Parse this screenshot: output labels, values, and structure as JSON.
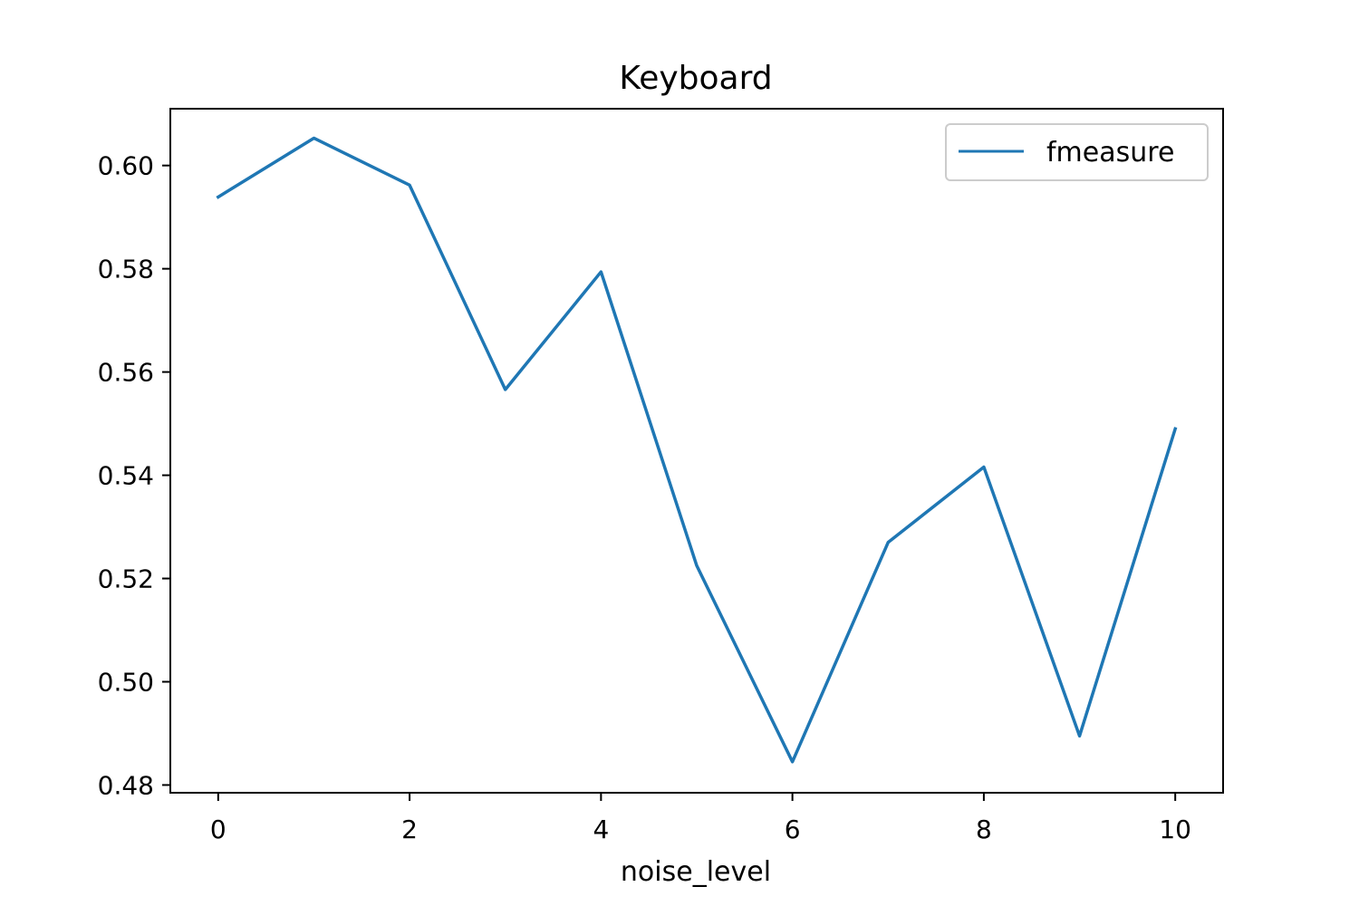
{
  "chart_data": {
    "type": "line",
    "title": "Keyboard",
    "xlabel": "noise_level",
    "ylabel": "",
    "x": [
      0,
      1,
      2,
      3,
      4,
      5,
      6,
      7,
      8,
      9,
      10
    ],
    "series": [
      {
        "name": "fmeasure",
        "color": "#1f77b4",
        "values": [
          0.5939,
          0.6053,
          0.5962,
          0.5566,
          0.5794,
          0.5225,
          0.4845,
          0.527,
          0.5416,
          0.4895,
          0.549
        ]
      }
    ],
    "xlim": [
      -0.5,
      10.5
    ],
    "ylim": [
      0.4785,
      0.611
    ],
    "xticks": [
      0,
      2,
      4,
      6,
      8,
      10
    ],
    "xtick_labels": [
      "0",
      "2",
      "4",
      "6",
      "8",
      "10"
    ],
    "yticks": [
      0.48,
      0.5,
      0.52,
      0.54,
      0.56,
      0.58,
      0.6
    ],
    "ytick_labels": [
      "0.48",
      "0.50",
      "0.52",
      "0.54",
      "0.56",
      "0.58",
      "0.60"
    ],
    "grid": false,
    "legend_position": "top-right"
  }
}
